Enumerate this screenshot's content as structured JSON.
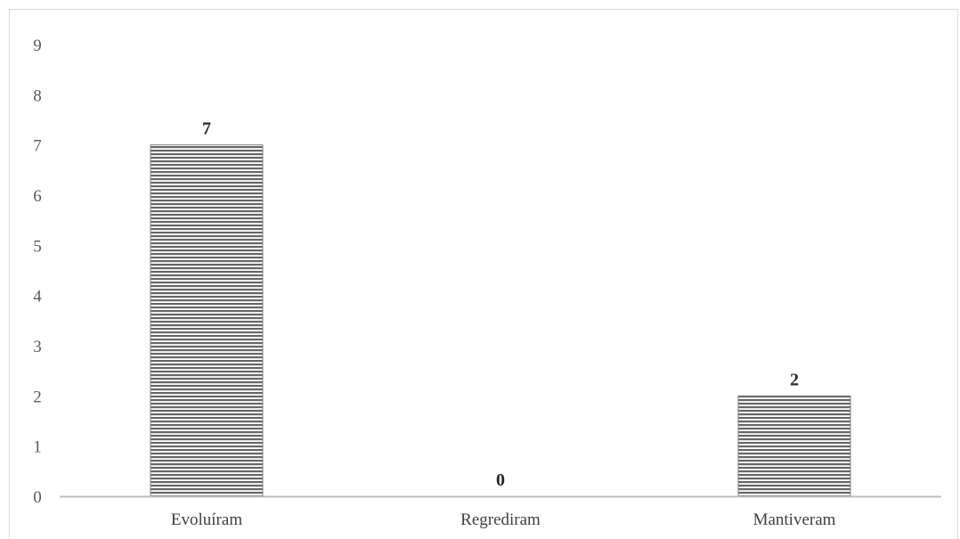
{
  "chart_data": {
    "type": "bar",
    "categories": [
      "Evoluíram",
      "Regrediram",
      "Mantiveram"
    ],
    "values": [
      7,
      0,
      2
    ],
    "data_labels": [
      "7",
      "0",
      "2"
    ],
    "y_ticks": [
      "0",
      "1",
      "2",
      "3",
      "4",
      "5",
      "6",
      "7",
      "8",
      "9"
    ],
    "ylim": [
      0,
      9
    ],
    "title": "",
    "xlabel": "",
    "ylabel": "",
    "grid": false,
    "legend": "none",
    "bar_fill": "horizontal-stripes",
    "bar_color": "#7f7f7f",
    "axis_color": "#bfbfbf"
  }
}
